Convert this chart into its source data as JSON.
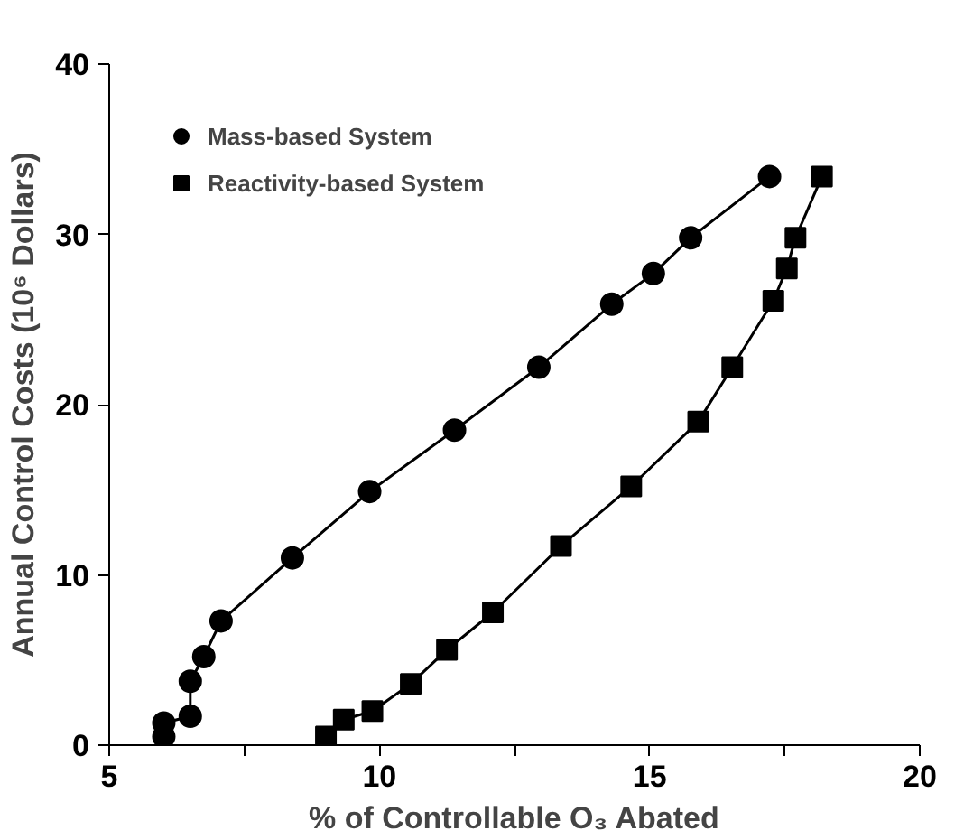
{
  "chart_data": {
    "type": "line",
    "xlabel": "% of Controllable O₃ Abated",
    "ylabel": "Annual Control Costs (10⁶ Dollars)",
    "xlim": [
      5,
      20
    ],
    "ylim": [
      0,
      40
    ],
    "xticks": [
      5,
      {
        "value": 7.5,
        "label": null
      },
      10,
      {
        "value": 12.5,
        "label": null
      },
      15,
      {
        "value": 17.5,
        "label": null
      },
      20
    ],
    "yticks": [
      0,
      10,
      20,
      30,
      40
    ],
    "grid": false,
    "legend": "top left",
    "series": [
      {
        "name": "Mass-based System",
        "color": "#000000",
        "marker": "circle",
        "x": [
          6.01,
          6.01,
          6.5,
          6.5,
          6.75,
          7.07,
          8.39,
          9.82,
          11.39,
          12.95,
          14.3,
          15.07,
          15.76,
          17.22
        ],
        "values": [
          0.5,
          1.3,
          1.7,
          3.75,
          5.2,
          7.3,
          11.0,
          14.9,
          18.5,
          22.2,
          25.9,
          27.7,
          29.8,
          33.4
        ]
      },
      {
        "name": "Reactivity-based System",
        "color": "#000000",
        "marker": "square",
        "x": [
          9.01,
          9.34,
          9.87,
          10.58,
          11.25,
          12.1,
          13.36,
          14.66,
          15.9,
          16.53,
          17.29,
          17.54,
          17.7,
          18.19
        ],
        "values": [
          0.5,
          1.5,
          2.0,
          3.6,
          5.6,
          7.8,
          11.7,
          15.2,
          19.0,
          22.2,
          26.1,
          28.0,
          29.8,
          33.4
        ]
      }
    ]
  }
}
